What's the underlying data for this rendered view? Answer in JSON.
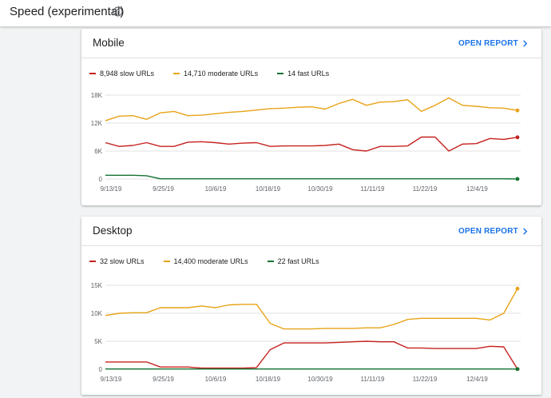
{
  "header": {
    "title": "Speed (experimental)",
    "help_icon": "help-circle-icon"
  },
  "colors": {
    "slow": "#c5221f",
    "moderate": "#e8a317",
    "fast": "#137333",
    "accent": "#1a73e8"
  },
  "cards": [
    {
      "title": "Mobile",
      "open_report_label": "OPEN REPORT",
      "legend": [
        "8,948 slow URLs",
        "14,710 moderate URLs",
        "14 fast URLs"
      ]
    },
    {
      "title": "Desktop",
      "open_report_label": "OPEN REPORT",
      "legend": [
        "32 slow URLs",
        "14,400 moderate URLs",
        "22 fast URLs"
      ]
    }
  ],
  "chart_data": [
    {
      "type": "line",
      "x_tick_labels": [
        "9/13/19",
        "9/25/19",
        "10/6/19",
        "10/18/19",
        "10/30/19",
        "11/11/19",
        "11/22/19",
        "12/4/19"
      ],
      "y_tick_labels": [
        "0",
        "6K",
        "12K",
        "18K"
      ],
      "ylim": [
        0,
        18000
      ],
      "grid": true,
      "x": [
        "9/13/19",
        "9/16/19",
        "9/19/19",
        "9/22/19",
        "9/25/19",
        "9/28/19",
        "10/1/19",
        "10/4/19",
        "10/7/19",
        "10/10/19",
        "10/13/19",
        "10/16/19",
        "10/19/19",
        "10/22/19",
        "10/25/19",
        "10/28/19",
        "10/31/19",
        "11/3/19",
        "11/6/19",
        "11/9/19",
        "11/12/19",
        "11/15/19",
        "11/18/19",
        "11/21/19",
        "11/24/19",
        "11/27/19",
        "11/30/19",
        "12/3/19",
        "12/6/19",
        "12/9/19",
        "12/12/19"
      ],
      "series": [
        {
          "name": "slow",
          "values": [
            7800,
            7000,
            7200,
            7800,
            7000,
            7000,
            7900,
            8000,
            7800,
            7500,
            7700,
            7800,
            7000,
            7100,
            7100,
            7100,
            7200,
            7500,
            6300,
            6000,
            7000,
            7000,
            7100,
            9000,
            9000,
            6000,
            7500,
            7600,
            8700,
            8500,
            8948
          ]
        },
        {
          "name": "moderate",
          "values": [
            12500,
            13500,
            13600,
            12800,
            14200,
            14500,
            13600,
            13700,
            14000,
            14300,
            14500,
            14800,
            15100,
            15200,
            15400,
            15500,
            15000,
            16200,
            17100,
            15800,
            16500,
            16600,
            17000,
            14500,
            15800,
            17400,
            15800,
            15600,
            15300,
            15200,
            14710
          ]
        },
        {
          "name": "fast",
          "values": [
            800,
            800,
            800,
            700,
            50,
            50,
            50,
            50,
            50,
            50,
            50,
            50,
            50,
            50,
            50,
            50,
            50,
            50,
            50,
            50,
            50,
            50,
            50,
            50,
            50,
            50,
            50,
            50,
            50,
            50,
            14
          ]
        }
      ]
    },
    {
      "type": "line",
      "x_tick_labels": [
        "9/13/19",
        "9/25/19",
        "10/6/19",
        "10/18/19",
        "10/30/19",
        "11/11/19",
        "11/22/19",
        "12/4/19"
      ],
      "y_tick_labels": [
        "0",
        "5K",
        "10K",
        "15K"
      ],
      "ylim": [
        0,
        15000
      ],
      "grid": true,
      "x": [
        "9/13/19",
        "9/16/19",
        "9/19/19",
        "9/22/19",
        "9/25/19",
        "9/28/19",
        "10/1/19",
        "10/4/19",
        "10/7/19",
        "10/10/19",
        "10/13/19",
        "10/16/19",
        "10/19/19",
        "10/22/19",
        "10/25/19",
        "10/28/19",
        "10/31/19",
        "11/3/19",
        "11/6/19",
        "11/9/19",
        "11/12/19",
        "11/15/19",
        "11/18/19",
        "11/21/19",
        "11/24/19",
        "11/27/19",
        "11/30/19",
        "12/3/19",
        "12/6/19",
        "12/9/19",
        "12/12/19"
      ],
      "series": [
        {
          "name": "slow",
          "values": [
            1300,
            1300,
            1300,
            1300,
            400,
            400,
            400,
            200,
            200,
            200,
            200,
            300,
            3500,
            4700,
            4700,
            4700,
            4700,
            4800,
            4900,
            5000,
            4900,
            4900,
            3800,
            3800,
            3700,
            3700,
            3700,
            3700,
            4100,
            4000,
            32
          ]
        },
        {
          "name": "moderate",
          "values": [
            9600,
            10000,
            10100,
            10100,
            11000,
            11000,
            11000,
            11300,
            11000,
            11500,
            11600,
            11600,
            8200,
            7200,
            7200,
            7200,
            7300,
            7300,
            7300,
            7400,
            7400,
            8000,
            8900,
            9100,
            9100,
            9100,
            9100,
            9100,
            8800,
            10000,
            14400
          ]
        },
        {
          "name": "fast",
          "values": [
            50,
            50,
            50,
            50,
            50,
            50,
            50,
            50,
            50,
            50,
            50,
            50,
            50,
            50,
            50,
            50,
            50,
            50,
            50,
            50,
            50,
            50,
            50,
            50,
            50,
            50,
            50,
            50,
            50,
            50,
            22
          ]
        }
      ]
    }
  ]
}
